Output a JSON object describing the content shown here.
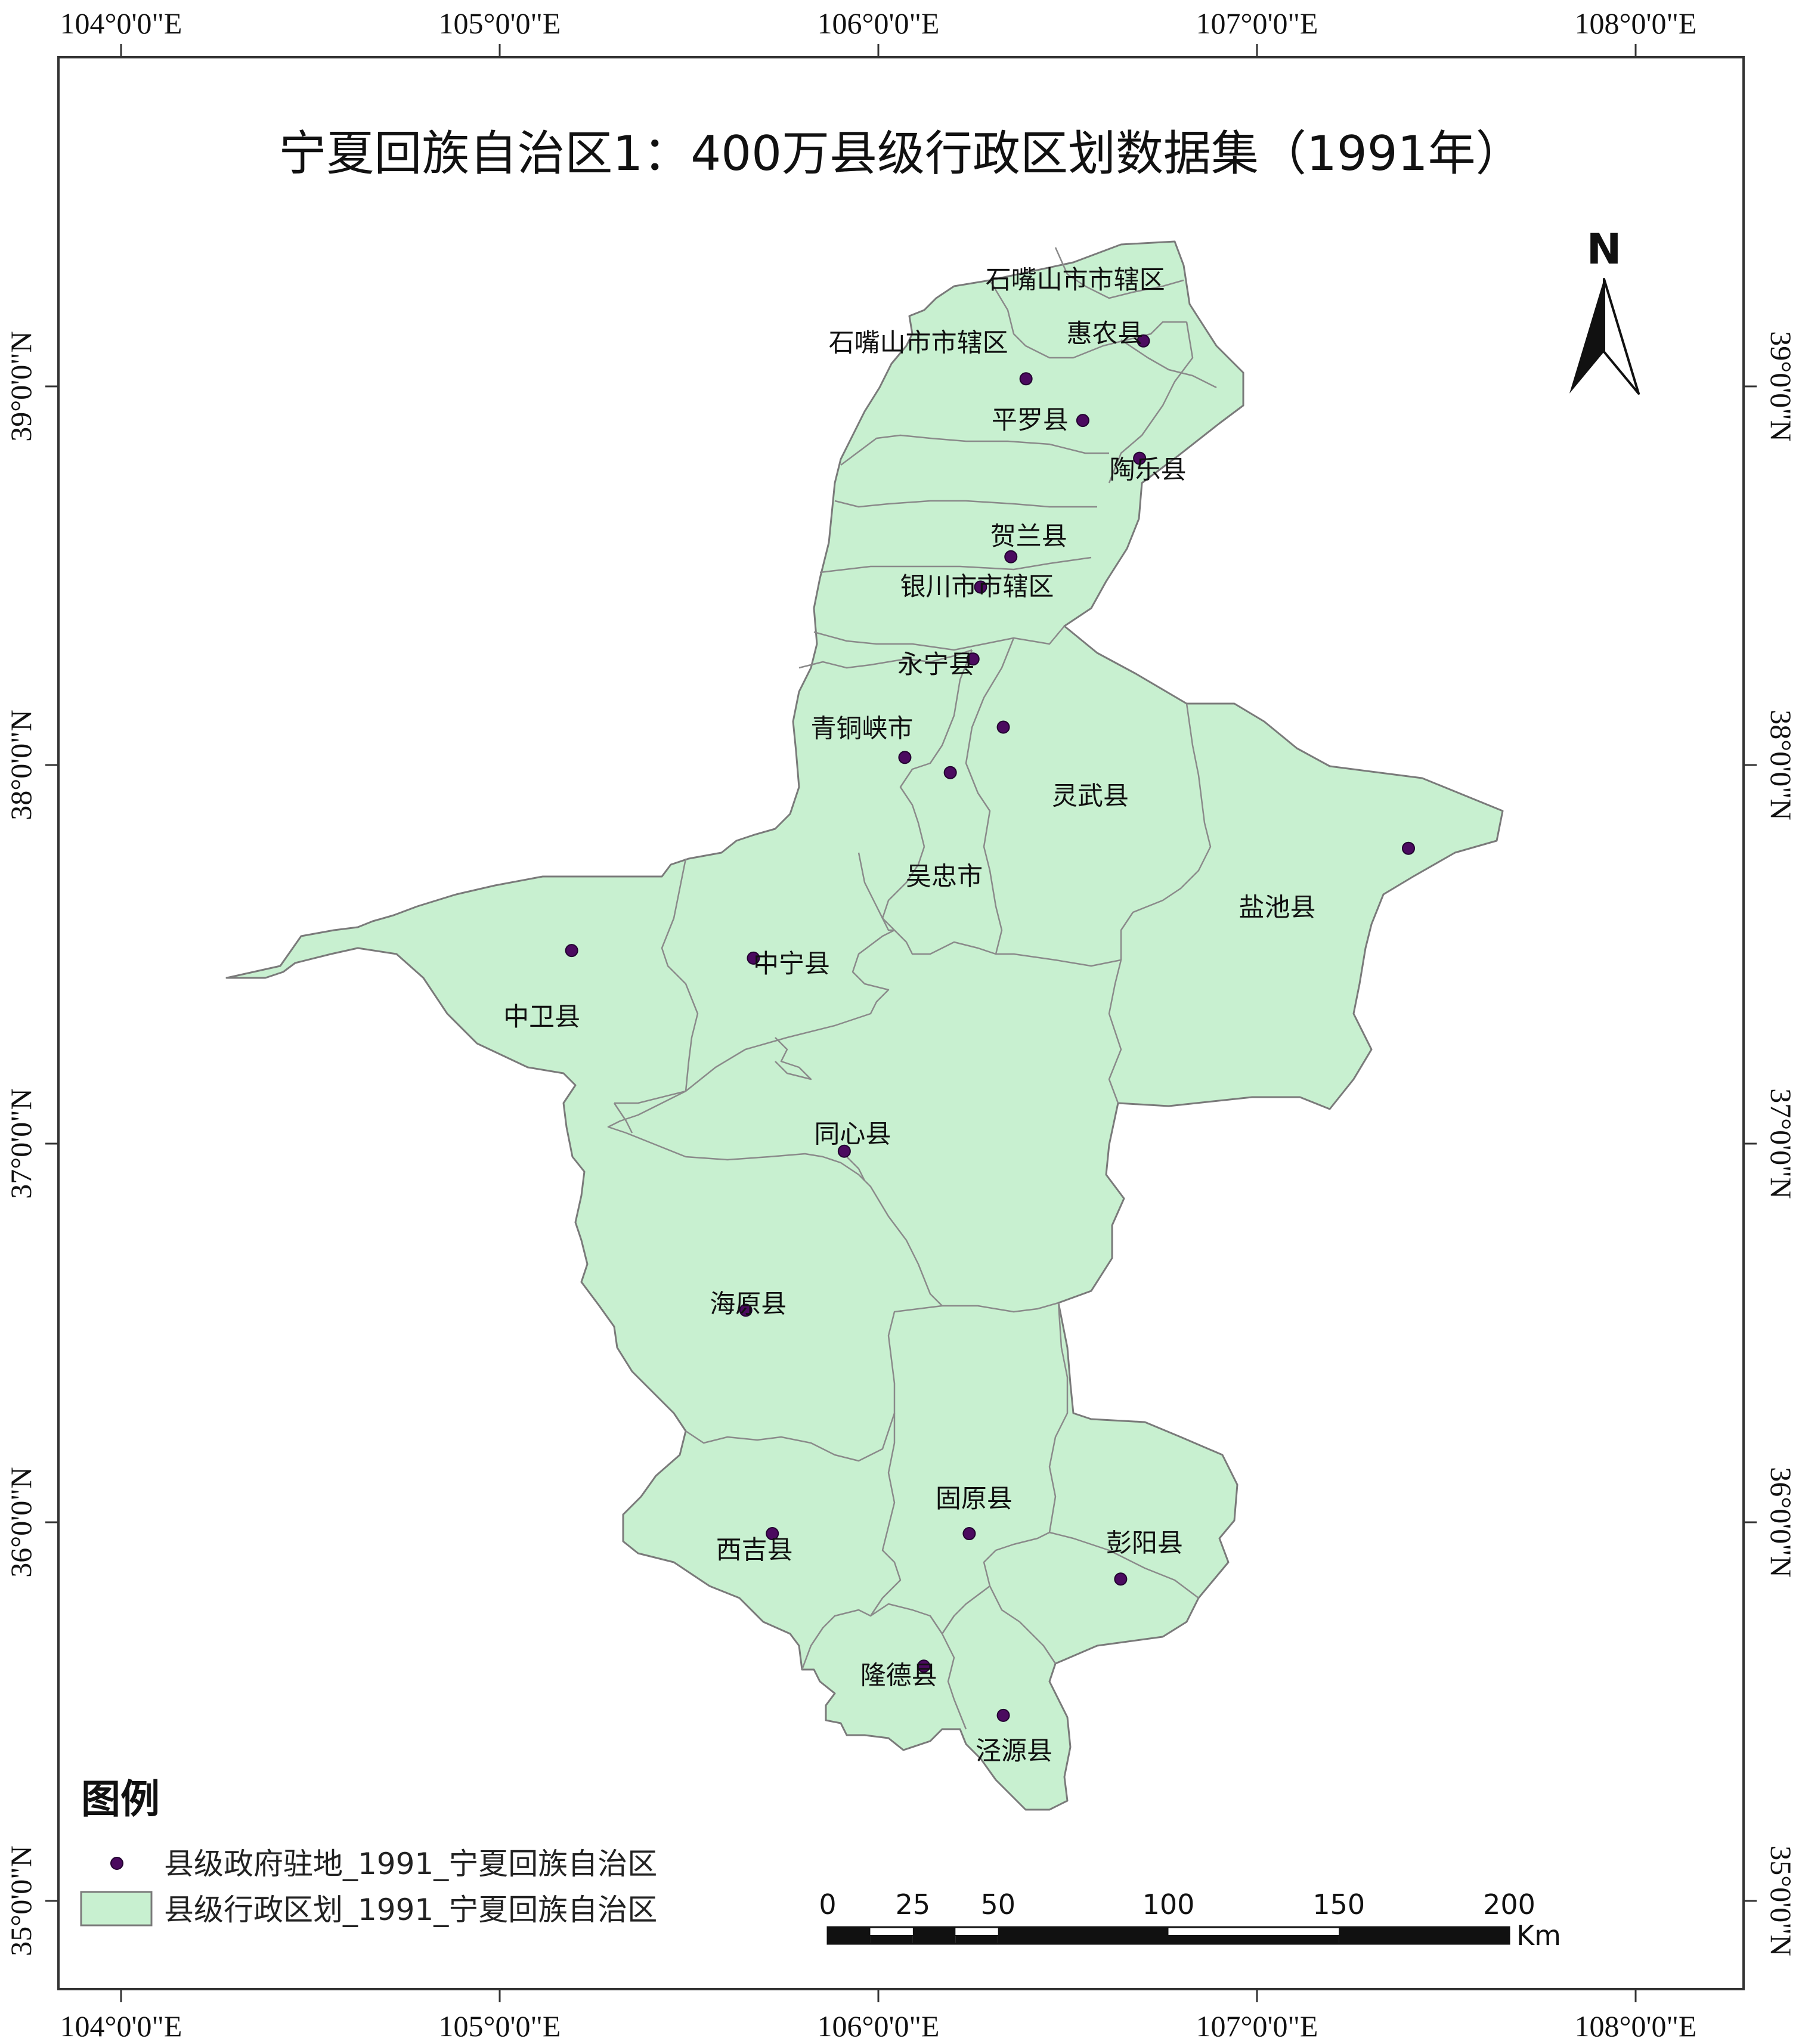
{
  "title": "宁夏回族自治区1：400万县级行政区划数据集（1991年）",
  "north_label": "N",
  "grid": {
    "longitudes": [
      {
        "value": 104,
        "label": "104°0'0\"E"
      },
      {
        "value": 105,
        "label": "105°0'0\"E"
      },
      {
        "value": 106,
        "label": "106°0'0\"E"
      },
      {
        "value": 107,
        "label": "107°0'0\"E"
      },
      {
        "value": 108,
        "label": "108°0'0\"E"
      }
    ],
    "latitudes": [
      {
        "value": 39,
        "label": "39°0'0\"N"
      },
      {
        "value": 38,
        "label": "38°0'0\"N"
      },
      {
        "value": 37,
        "label": "37°0'0\"N"
      },
      {
        "value": 36,
        "label": "36°0'0\"N"
      },
      {
        "value": 35,
        "label": "35°0'0\"N"
      }
    ]
  },
  "counties": [
    {
      "name": "石嘴山市市辖区",
      "lon": 106.52,
      "lat": 39.28
    },
    {
      "name": "石嘴山市市辖区",
      "lon": 106.39,
      "lat": 39.02,
      "label_side": "left"
    },
    {
      "name": "惠农县",
      "lon": 106.7,
      "lat": 39.12
    },
    {
      "name": "平罗县",
      "lon": 106.54,
      "lat": 38.91
    },
    {
      "name": "陶乐县",
      "lon": 106.69,
      "lat": 38.81
    },
    {
      "name": "贺兰县",
      "lon": 106.35,
      "lat": 38.55
    },
    {
      "name": "银川市市辖区",
      "lon": 106.27,
      "lat": 38.47
    },
    {
      "name": "永宁县",
      "lon": 106.25,
      "lat": 38.28
    },
    {
      "name": "青铜峡市",
      "lon": 106.07,
      "lat": 38.02
    },
    {
      "name": "灵武县",
      "lon": 106.33,
      "lat": 38.1
    },
    {
      "name": "吴忠市",
      "lon": 106.19,
      "lat": 37.98
    },
    {
      "name": "盐池县",
      "lon": 107.4,
      "lat": 37.78
    },
    {
      "name": "中卫县",
      "lon": 105.19,
      "lat": 37.51
    },
    {
      "name": "中宁县",
      "lon": 105.67,
      "lat": 37.49
    },
    {
      "name": "同心县",
      "lon": 105.91,
      "lat": 36.98
    },
    {
      "name": "海原县",
      "lon": 105.65,
      "lat": 36.56
    },
    {
      "name": "固原县",
      "lon": 106.24,
      "lat": 35.97
    },
    {
      "name": "西吉县",
      "lon": 105.72,
      "lat": 35.97
    },
    {
      "name": "彭阳县",
      "lon": 106.64,
      "lat": 35.85
    },
    {
      "name": "隆德县",
      "lon": 106.12,
      "lat": 35.62
    },
    {
      "name": "泾源县",
      "lon": 106.33,
      "lat": 35.49
    }
  ],
  "legend": {
    "title": "图例",
    "items": [
      {
        "label": "县级政府驻地_1991_宁夏回族自治区",
        "symbol": "point"
      },
      {
        "label": "县级行政区划_1991_宁夏回族自治区",
        "symbol": "polygon"
      }
    ]
  },
  "scale_bar": {
    "labels": [
      "0",
      "25",
      "50",
      "100",
      "150",
      "200"
    ],
    "values_km": [
      0,
      25,
      50,
      100,
      150,
      200
    ],
    "unit": "Km"
  },
  "colors": {
    "fill": "#c8f0d0",
    "boundary": "#7a7a7a",
    "point": "#4b0a5f",
    "frame": "#333333"
  }
}
